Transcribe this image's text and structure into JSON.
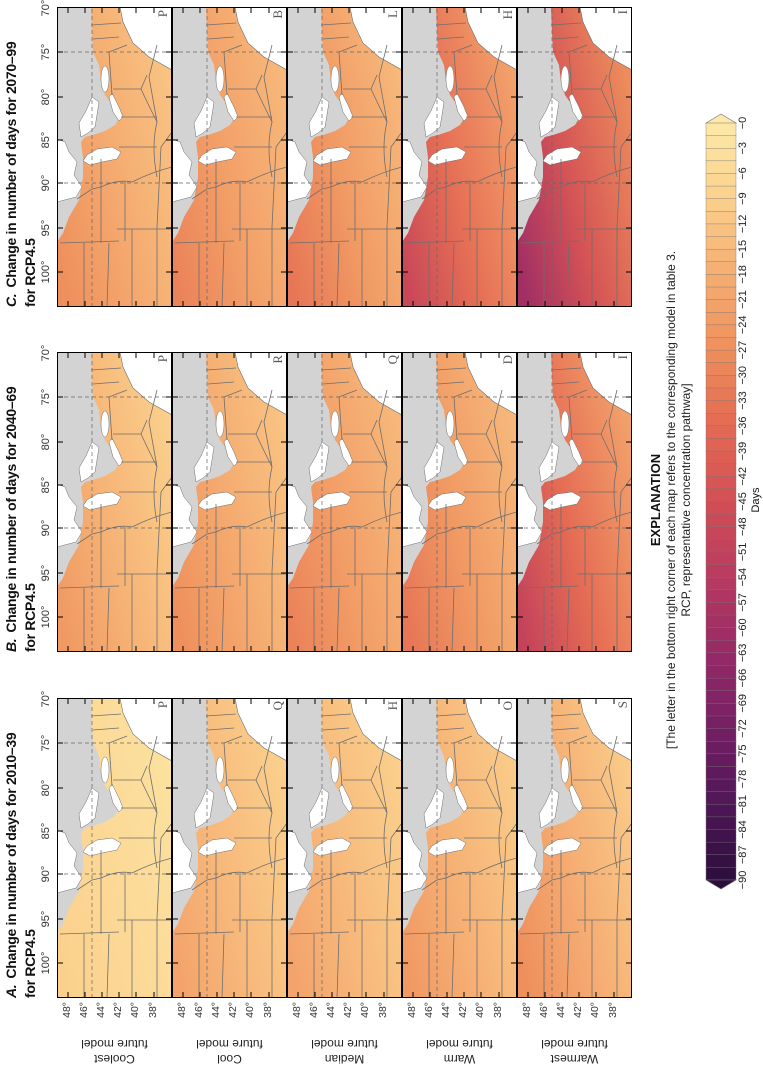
{
  "panels": [
    {
      "letter": "A.",
      "title_line1": "Change in number of days for 2010–39",
      "title_line2": "for RCP4.5",
      "models": [
        "P",
        "Q",
        "H",
        "O",
        "S"
      ],
      "estimated_change_days": {
        "north": [
          -9,
          -21,
          -21,
          -24,
          -27
        ],
        "south": [
          -3,
          -9,
          -9,
          -10,
          -10
        ]
      }
    },
    {
      "letter": "B.",
      "title_line1": "Change in number of days for 2040–69",
      "title_line2": "for RCP4.5",
      "models": [
        "P",
        "R",
        "Q",
        "D",
        "I"
      ],
      "estimated_change_days": {
        "north": [
          -24,
          -27,
          -30,
          -33,
          -50
        ],
        "south": [
          -9,
          -12,
          -15,
          -15,
          -21
        ]
      }
    },
    {
      "letter": "C.",
      "title_line1": "Change in number of days for 2070–99",
      "title_line2": "for RCP4.5",
      "models": [
        "P",
        "B",
        "L",
        "H",
        "I"
      ],
      "estimated_change_days": {
        "north": [
          -27,
          -30,
          -33,
          -48,
          -60
        ],
        "south": [
          -12,
          -15,
          -15,
          -21,
          -27
        ]
      }
    }
  ],
  "rows": [
    {
      "line1": "Coolest",
      "line2": "future model"
    },
    {
      "line1": "Cool",
      "line2": "future model"
    },
    {
      "line1": "Median",
      "line2": "future model"
    },
    {
      "line1": "Warm",
      "line2": "future model"
    },
    {
      "line1": "Warmest",
      "line2": "future model"
    }
  ],
  "lon_labels": [
    "100°",
    "95°",
    "90°",
    "85°",
    "80°",
    "75°",
    "70°"
  ],
  "lat_labels": [
    "48°",
    "46°",
    "44°",
    "42°",
    "40°",
    "38°"
  ],
  "legend": {
    "title": "EXPLANATION",
    "note_line1": "[The letter in the bottom right corner of each map refers to the corresponding model in table 3.",
    "note_line2": "RCP, representative concentration pathway]",
    "unit": "Days",
    "tick_labels": [
      "−90",
      "−87",
      "−84",
      "−81",
      "−78",
      "−75",
      "−72",
      "−69",
      "−66",
      "−63",
      "−60",
      "−57",
      "−54",
      "−51",
      "−48",
      "−45",
      "−42",
      "−39",
      "−36",
      "−33",
      "−30",
      "−27",
      "−24",
      "−21",
      "−18",
      "−15",
      "−12",
      "−9",
      "−6",
      "−3",
      "−0"
    ],
    "range": [
      -90,
      0
    ],
    "colormap": [
      {
        "value": 0,
        "color": "#fde9a9"
      },
      {
        "value": -9,
        "color": "#fbd08c"
      },
      {
        "value": -18,
        "color": "#f5ad72"
      },
      {
        "value": -27,
        "color": "#ee8f5c"
      },
      {
        "value": -36,
        "color": "#e46a53"
      },
      {
        "value": -45,
        "color": "#d24f55"
      },
      {
        "value": -54,
        "color": "#b83a5f"
      },
      {
        "value": -63,
        "color": "#962a66"
      },
      {
        "value": -72,
        "color": "#741f64"
      },
      {
        "value": -81,
        "color": "#4f1757"
      },
      {
        "value": -90,
        "color": "#2c0e3c"
      }
    ]
  },
  "colors": {
    "outside_domain": "#d3d3d3",
    "water": "#ffffff",
    "borders": "#6e6e6e"
  }
}
